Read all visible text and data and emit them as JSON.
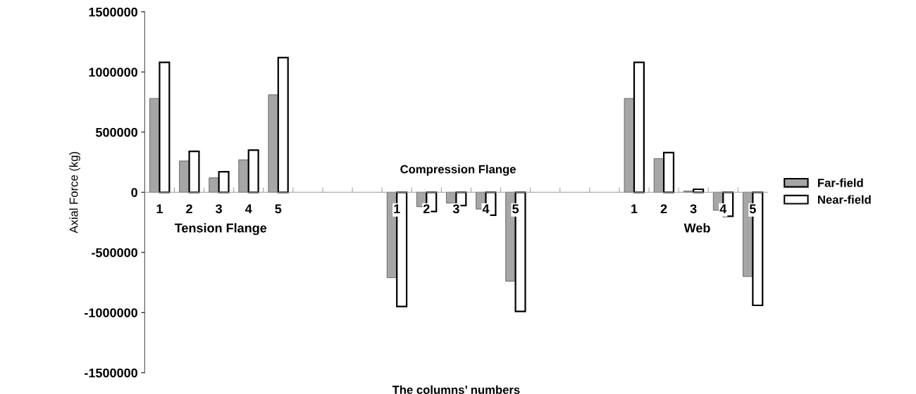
{
  "chart_data": {
    "type": "bar",
    "xlabel": "The columns’ numbers",
    "ylabel": "Axial Force (kg)",
    "categories": [
      "1",
      "2",
      "3",
      "4",
      "5",
      null,
      null,
      null,
      "1",
      "2",
      "3",
      "4",
      "5",
      null,
      null,
      null,
      "1",
      "2",
      "3",
      "4",
      "5"
    ],
    "series": [
      {
        "name": "Far-field",
        "color": "#a6a6a6",
        "values": [
          780000,
          260000,
          120000,
          270000,
          810000,
          null,
          null,
          null,
          -710000,
          -120000,
          -90000,
          -140000,
          -740000,
          null,
          null,
          null,
          780000,
          280000,
          10000,
          -150000,
          -700000
        ]
      },
      {
        "name": "Near-field",
        "color": "#ffffff",
        "values": [
          1080000,
          340000,
          170000,
          350000,
          1120000,
          null,
          null,
          null,
          -950000,
          -160000,
          -110000,
          -190000,
          -990000,
          null,
          null,
          null,
          1080000,
          330000,
          25000,
          -200000,
          -940000
        ]
      }
    ],
    "ylim": [
      -1500000,
      1500000
    ],
    "yticks": [
      -1500000,
      -1000000,
      -500000,
      0,
      500000,
      1000000,
      1500000
    ],
    "annotations": [
      "Tension Flange",
      "Compression Flange",
      "Web"
    ],
    "legend": "right",
    "grid": false
  }
}
